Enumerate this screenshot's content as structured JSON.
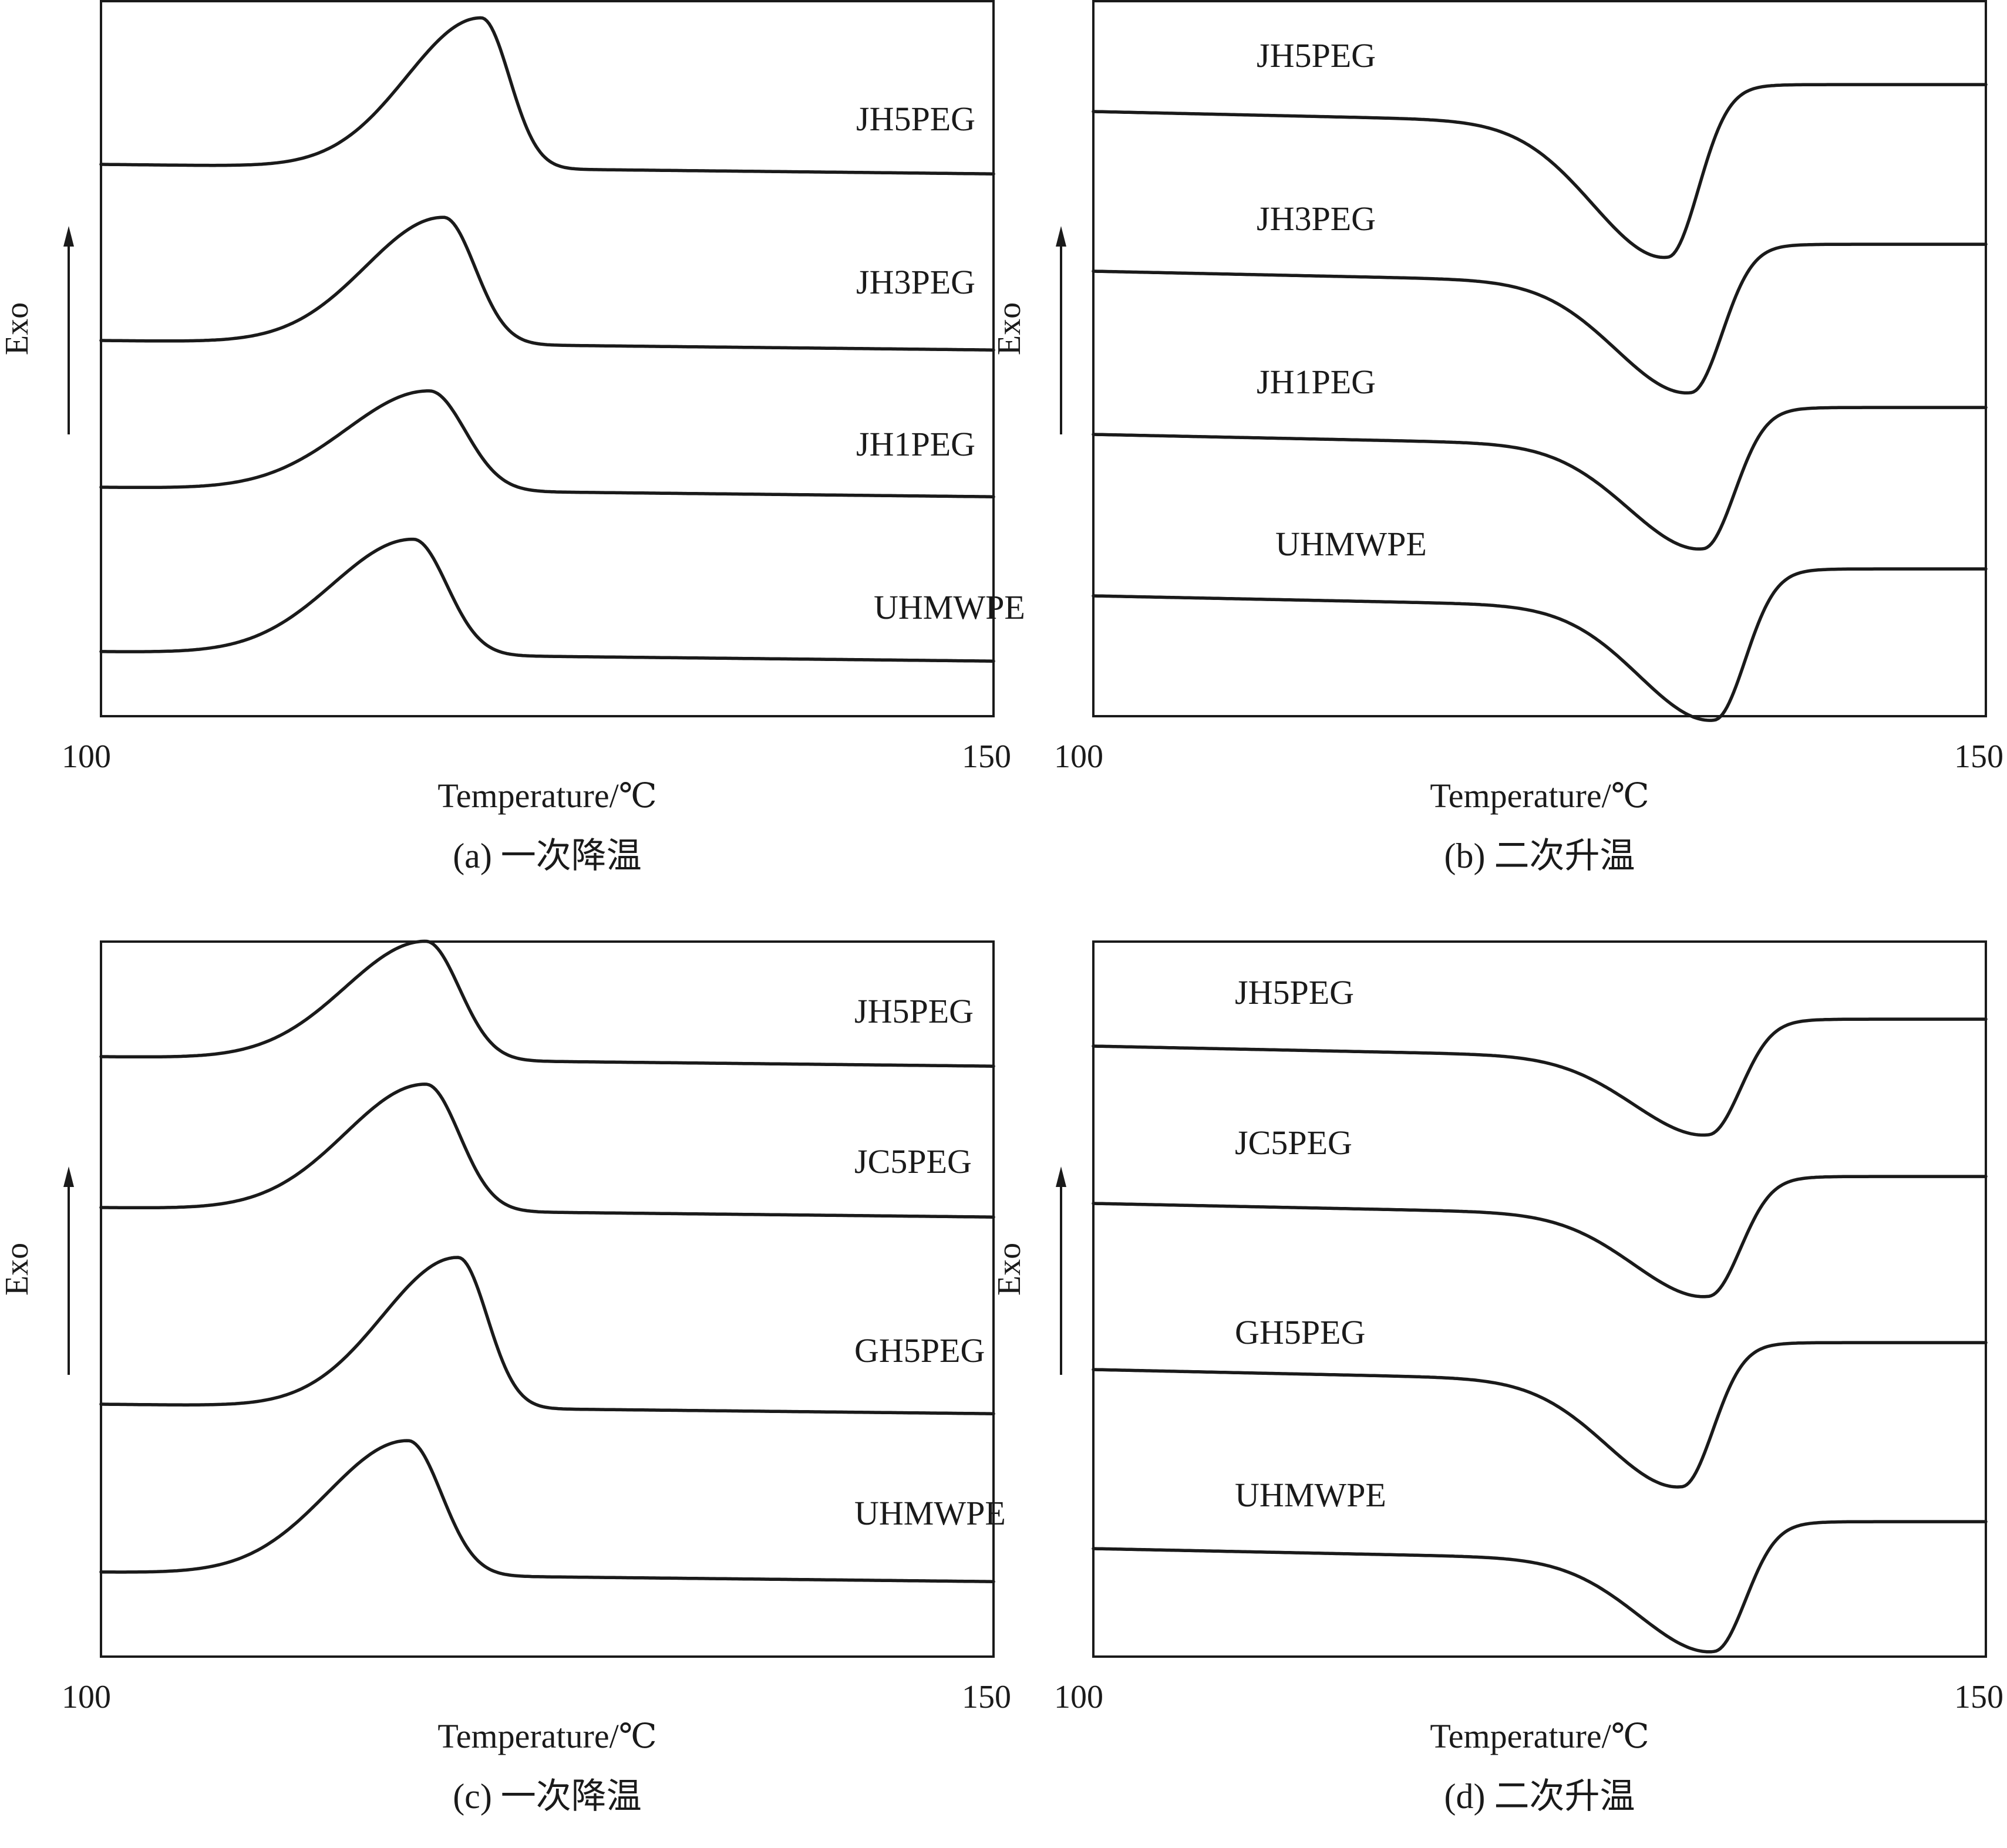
{
  "chart_data": [
    {
      "type": "line",
      "caption": "(a) 一次降温",
      "xlabel": "Temperature/℃",
      "ylabel": "Exo",
      "xlim": [
        100,
        150
      ],
      "x_tick_labels": [
        "100",
        "150"
      ],
      "y_axis_arrow": "up",
      "curve_kind": "exotherm",
      "series": [
        {
          "name": "JH5PEG",
          "peak_temp": 121.3,
          "peak_height": 0.95,
          "skew": 0.6
        },
        {
          "name": "JH3PEG",
          "peak_temp": 119.2,
          "peak_height": 0.8,
          "skew": 0.45
        },
        {
          "name": "JH1PEG",
          "peak_temp": 118.4,
          "peak_height": 0.63,
          "skew": 0.25
        },
        {
          "name": "UHMWPE",
          "peak_temp": 117.5,
          "peak_height": 0.73,
          "skew": 0.35
        }
      ]
    },
    {
      "type": "line",
      "caption": "(b) 二次升温",
      "xlabel": "Temperature/℃",
      "ylabel": "Exo",
      "xlim": [
        100,
        150
      ],
      "x_tick_labels": [
        "100",
        "150"
      ],
      "y_axis_arrow": "up",
      "curve_kind": "endotherm",
      "series": [
        {
          "name": "JH5PEG",
          "peak_temp": 132.2,
          "peak_height": 0.95,
          "skew": 0.3
        },
        {
          "name": "JH3PEG",
          "peak_temp": 133.5,
          "peak_height": 0.78,
          "skew": 0.3
        },
        {
          "name": "JH1PEG",
          "peak_temp": 134.2,
          "peak_height": 0.73,
          "skew": 0.3
        },
        {
          "name": "UHMWPE",
          "peak_temp": 134.8,
          "peak_height": 0.8,
          "skew": 0.3
        }
      ]
    },
    {
      "type": "line",
      "caption": "(c) 一次降温",
      "xlabel": "Temperature/℃",
      "ylabel": "Exo",
      "xlim": [
        100,
        150
      ],
      "x_tick_labels": [
        "100",
        "150"
      ],
      "y_axis_arrow": "up",
      "curve_kind": "exotherm",
      "series": [
        {
          "name": "JH5PEG",
          "peak_temp": 118.2,
          "peak_height": 0.75,
          "skew": 0.35
        },
        {
          "name": "JC5PEG",
          "peak_temp": 118.2,
          "peak_height": 0.8,
          "skew": 0.35
        },
        {
          "name": "GH5PEG",
          "peak_temp": 120.0,
          "peak_height": 0.95,
          "skew": 0.55
        },
        {
          "name": "UHMWPE",
          "peak_temp": 117.2,
          "peak_height": 0.85,
          "skew": 0.35
        }
      ]
    },
    {
      "type": "line",
      "caption": "(d) 二次升温",
      "xlabel": "Temperature/℃",
      "ylabel": "Exo",
      "xlim": [
        100,
        150
      ],
      "x_tick_labels": [
        "100",
        "150"
      ],
      "y_axis_arrow": "up",
      "curve_kind": "endotherm",
      "series": [
        {
          "name": "JH5PEG",
          "peak_temp": 134.5,
          "peak_height": 0.55,
          "skew": 0.3
        },
        {
          "name": "JC5PEG",
          "peak_temp": 134.5,
          "peak_height": 0.58,
          "skew": 0.3
        },
        {
          "name": "GH5PEG",
          "peak_temp": 133.0,
          "peak_height": 0.75,
          "skew": 0.3
        },
        {
          "name": "UHMWPE",
          "peak_temp": 134.8,
          "peak_height": 0.65,
          "skew": 0.3
        }
      ]
    }
  ]
}
